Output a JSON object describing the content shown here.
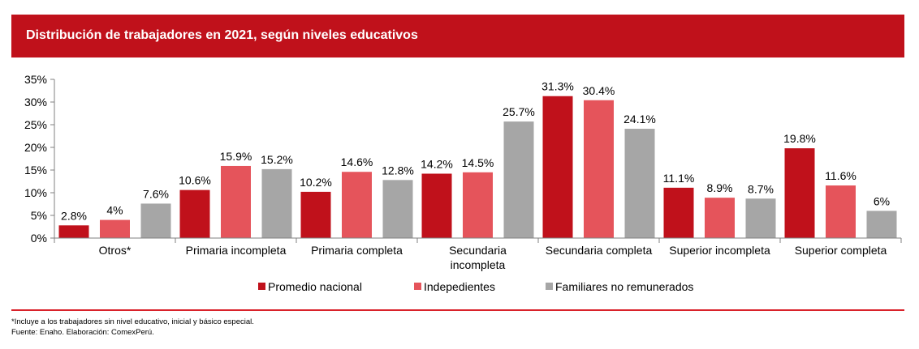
{
  "title": "Distribución de trabajadores en 2021, según niveles educativos",
  "chart_data": {
    "type": "bar",
    "categories": [
      [
        "Otros*"
      ],
      [
        "Primaria incompleta"
      ],
      [
        "Primaria completa"
      ],
      [
        "Secundaria",
        "incompleta"
      ],
      [
        "Secundaria completa"
      ],
      [
        "Superior incompleta"
      ],
      [
        "Superior completa"
      ]
    ],
    "series": [
      {
        "name": "Promedio nacional",
        "color": "#c0111b",
        "values": [
          2.8,
          10.6,
          10.2,
          14.2,
          31.3,
          11.1,
          19.8
        ],
        "labels": [
          "2.8%",
          "10.6%",
          "10.2%",
          "14.2%",
          "31.3%",
          "11.1%",
          "19.8%"
        ]
      },
      {
        "name": "Indepedientes",
        "color": "#e5545b",
        "values": [
          4,
          15.9,
          14.6,
          14.5,
          30.4,
          8.9,
          11.6
        ],
        "labels": [
          "4%",
          "15.9%",
          "14.6%",
          "14.5%",
          "30.4%",
          "8.9%",
          "11.6%"
        ]
      },
      {
        "name": "Familiares no remunerados",
        "color": "#a6a6a6",
        "values": [
          7.6,
          15.2,
          12.8,
          25.7,
          24.1,
          8.7,
          6
        ],
        "labels": [
          "7.6%",
          "15.2%",
          "12.8%",
          "25.7%",
          "24.1%",
          "8.7%",
          "6%"
        ]
      }
    ],
    "ylim": [
      0,
      35
    ],
    "yticks": [
      0,
      5,
      10,
      15,
      20,
      25,
      30,
      35
    ],
    "ytick_labels": [
      "0%",
      "5%",
      "10%",
      "15%",
      "20%",
      "25%",
      "30%",
      "35%"
    ],
    "xlabel": "",
    "ylabel": "",
    "legend_position": "bottom"
  },
  "footnotes": {
    "note": "*Incluye a los trabajadores sin nivel educativo, inicial y básico especial.",
    "source": "Fuente: Enaho. Elaboración: ComexPerú."
  }
}
